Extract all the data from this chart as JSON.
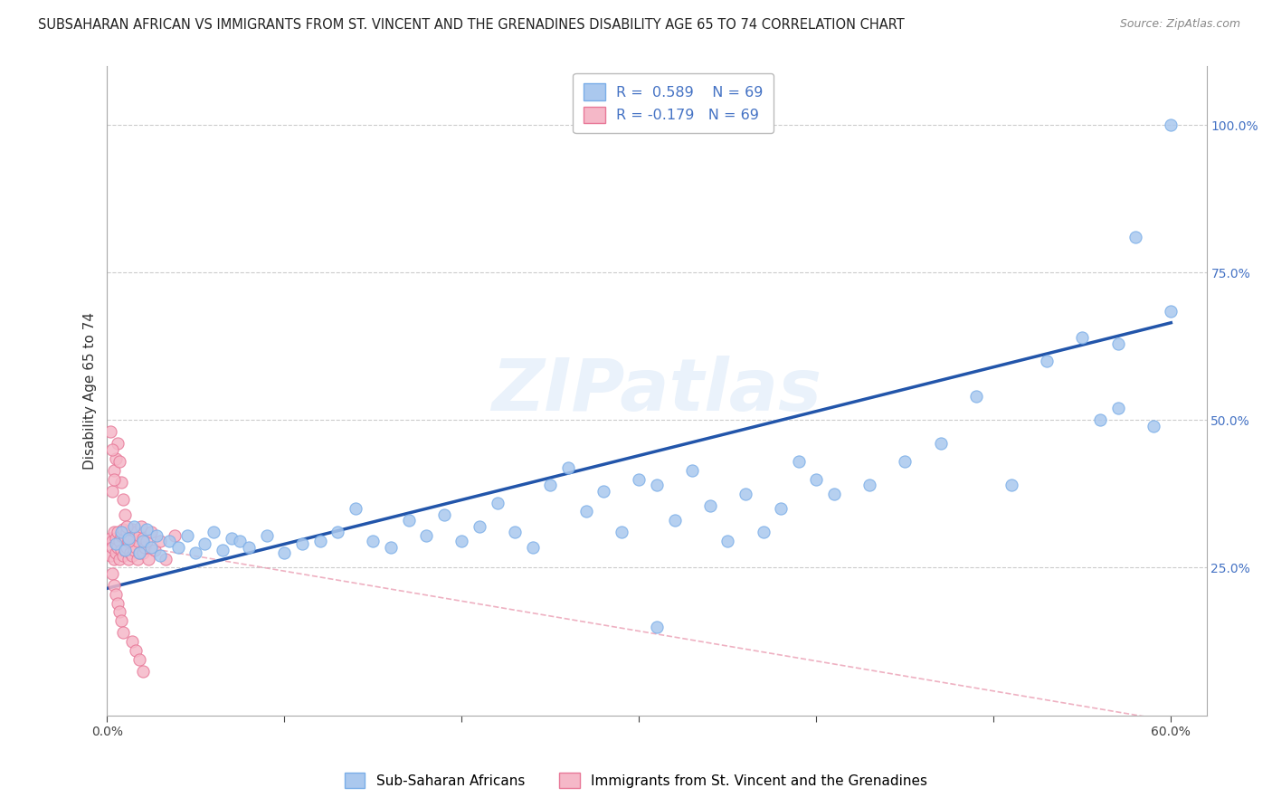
{
  "title": "SUBSAHARAN AFRICAN VS IMMIGRANTS FROM ST. VINCENT AND THE GRENADINES DISABILITY AGE 65 TO 74 CORRELATION CHART",
  "source": "Source: ZipAtlas.com",
  "ylabel": "Disability Age 65 to 74",
  "r_blue": 0.589,
  "n_blue": 69,
  "r_pink": -0.179,
  "n_pink": 69,
  "xmin": 0.0,
  "xmax": 0.62,
  "ymin": 0.0,
  "ymax": 1.1,
  "ytick_positions": [
    0.25,
    0.5,
    0.75,
    1.0
  ],
  "ytick_labels": [
    "25.0%",
    "50.0%",
    "75.0%",
    "100.0%"
  ],
  "xticks": [
    0.0,
    0.1,
    0.2,
    0.3,
    0.4,
    0.5,
    0.6
  ],
  "xtick_labels": [
    "0.0%",
    "",
    "",
    "",
    "",
    "",
    "60.0%"
  ],
  "blue_scatter_x": [
    0.005,
    0.008,
    0.01,
    0.012,
    0.015,
    0.018,
    0.02,
    0.022,
    0.025,
    0.028,
    0.03,
    0.035,
    0.04,
    0.045,
    0.05,
    0.055,
    0.06,
    0.065,
    0.07,
    0.075,
    0.08,
    0.09,
    0.1,
    0.11,
    0.12,
    0.13,
    0.14,
    0.15,
    0.16,
    0.17,
    0.18,
    0.19,
    0.2,
    0.21,
    0.22,
    0.23,
    0.24,
    0.25,
    0.26,
    0.27,
    0.28,
    0.29,
    0.3,
    0.31,
    0.32,
    0.33,
    0.34,
    0.35,
    0.36,
    0.37,
    0.38,
    0.39,
    0.4,
    0.41,
    0.43,
    0.45,
    0.47,
    0.49,
    0.51,
    0.53,
    0.55,
    0.57,
    0.59,
    0.6,
    0.6,
    0.58,
    0.57,
    0.56,
    0.31
  ],
  "blue_scatter_y": [
    0.29,
    0.31,
    0.28,
    0.3,
    0.32,
    0.275,
    0.295,
    0.315,
    0.285,
    0.305,
    0.27,
    0.295,
    0.285,
    0.305,
    0.275,
    0.29,
    0.31,
    0.28,
    0.3,
    0.295,
    0.285,
    0.305,
    0.275,
    0.29,
    0.295,
    0.31,
    0.35,
    0.295,
    0.285,
    0.33,
    0.305,
    0.34,
    0.295,
    0.32,
    0.36,
    0.31,
    0.285,
    0.39,
    0.42,
    0.345,
    0.38,
    0.31,
    0.4,
    0.39,
    0.33,
    0.415,
    0.355,
    0.295,
    0.375,
    0.31,
    0.35,
    0.43,
    0.4,
    0.375,
    0.39,
    0.43,
    0.46,
    0.54,
    0.39,
    0.6,
    0.64,
    0.52,
    0.49,
    1.0,
    0.685,
    0.81,
    0.63,
    0.5,
    0.15
  ],
  "pink_scatter_x": [
    0.002,
    0.002,
    0.003,
    0.003,
    0.004,
    0.004,
    0.005,
    0.005,
    0.006,
    0.006,
    0.007,
    0.007,
    0.008,
    0.008,
    0.009,
    0.009,
    0.01,
    0.01,
    0.011,
    0.011,
    0.012,
    0.012,
    0.013,
    0.013,
    0.014,
    0.014,
    0.015,
    0.015,
    0.016,
    0.016,
    0.017,
    0.017,
    0.018,
    0.018,
    0.019,
    0.02,
    0.02,
    0.021,
    0.022,
    0.023,
    0.025,
    0.027,
    0.03,
    0.033,
    0.038,
    0.003,
    0.004,
    0.005,
    0.006,
    0.007,
    0.008,
    0.009,
    0.01,
    0.011,
    0.012,
    0.003,
    0.004,
    0.005,
    0.006,
    0.007,
    0.008,
    0.009,
    0.014,
    0.016,
    0.018,
    0.02,
    0.002,
    0.003,
    0.004
  ],
  "pink_scatter_y": [
    0.3,
    0.27,
    0.295,
    0.285,
    0.31,
    0.265,
    0.3,
    0.275,
    0.31,
    0.285,
    0.295,
    0.265,
    0.305,
    0.28,
    0.315,
    0.27,
    0.3,
    0.28,
    0.31,
    0.285,
    0.295,
    0.265,
    0.305,
    0.275,
    0.315,
    0.27,
    0.3,
    0.28,
    0.31,
    0.285,
    0.295,
    0.265,
    0.305,
    0.275,
    0.32,
    0.3,
    0.275,
    0.285,
    0.295,
    0.265,
    0.31,
    0.28,
    0.295,
    0.265,
    0.305,
    0.38,
    0.415,
    0.435,
    0.46,
    0.43,
    0.395,
    0.365,
    0.34,
    0.32,
    0.295,
    0.24,
    0.22,
    0.205,
    0.19,
    0.175,
    0.16,
    0.14,
    0.125,
    0.11,
    0.095,
    0.075,
    0.48,
    0.45,
    0.4
  ],
  "blue_line_x": [
    0.0,
    0.6
  ],
  "blue_line_y": [
    0.215,
    0.665
  ],
  "pink_line_x": [
    0.0,
    0.62
  ],
  "pink_line_y": [
    0.295,
    -0.02
  ],
  "watermark": "ZIPatlas",
  "background_color": "#ffffff",
  "blue_color": "#aac8ee",
  "blue_edge": "#7aaee8",
  "pink_color": "#f5b8c8",
  "pink_edge": "#e87898",
  "blue_line_color": "#2255aa",
  "pink_line_color": "#e890a8",
  "grid_color": "#cccccc",
  "title_fontsize": 10.5,
  "axis_label_fontsize": 11,
  "tick_fontsize": 10,
  "scatter_size": 90
}
